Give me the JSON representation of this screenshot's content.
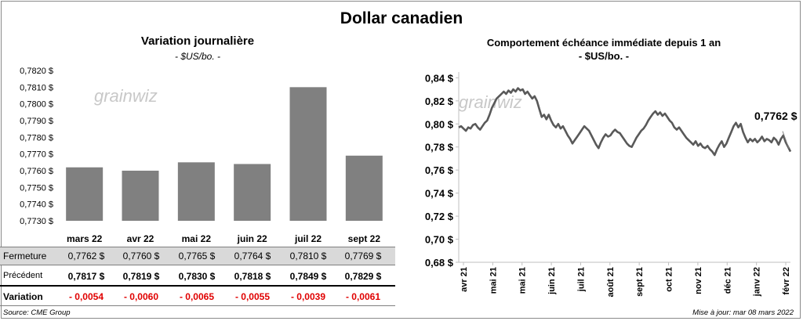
{
  "title": "Dollar canadien",
  "left_chart": {
    "title": "Variation  journalière",
    "subtitle": "- $US/bo. -",
    "watermark": "grainwiz"
  },
  "right_chart": {
    "title": "Comportement échéance immédiate depuis 1 an",
    "subtitle": "- $US/bo. -",
    "watermark": "grainwiz",
    "last_value_label": "0,7762 $"
  },
  "table": {
    "rows": [
      {
        "label": "Fermeture",
        "values": [
          "0,7762 $",
          "0,7760 $",
          "0,7765 $",
          "0,7764 $",
          "0,7810 $",
          "0,7769 $"
        ]
      },
      {
        "label": "Précédent",
        "values": [
          "0,7817 $",
          "0,7819 $",
          "0,7830 $",
          "0,7818 $",
          "0,7849 $",
          "0,7829 $"
        ]
      },
      {
        "label": "Variation",
        "values": [
          "- 0,0054",
          "- 0,0060",
          "- 0,0065",
          "- 0,0055",
          "- 0,0039",
          "- 0,0061"
        ]
      }
    ],
    "negative_color": "#e00000",
    "shade_color": "#d9d9d9"
  },
  "footer": {
    "source": "Source: CME Group",
    "update": "Mise à jour: mar 08 mars 2022"
  },
  "chart_data": [
    {
      "type": "bar",
      "categories": [
        "mars 22",
        "avr 22",
        "mai 22",
        "juin 22",
        "juil 22",
        "sept 22"
      ],
      "values": [
        0.7762,
        0.776,
        0.7765,
        0.7764,
        0.781,
        0.7769
      ],
      "ylim": [
        0.773,
        0.782
      ],
      "yticks": [
        "0,7730 $",
        "0,7740 $",
        "0,7750 $",
        "0,7760 $",
        "0,7770 $",
        "0,7780 $",
        "0,7790 $",
        "0,7800 $",
        "0,7810 $",
        "0,7820 $"
      ],
      "bar_color": "#808080"
    },
    {
      "type": "line",
      "xticks": [
        "avr 21",
        "mai 21",
        "mai 21",
        "juin 21",
        "juil 21",
        "août 21",
        "sept 21",
        "oct 21",
        "nov 21",
        "déc 21",
        "janv 22",
        "févr 22"
      ],
      "yticks": [
        "0,68 $",
        "0,70 $",
        "0,72 $",
        "0,74 $",
        "0,76 $",
        "0,78 $",
        "0,80 $",
        "0,82 $",
        "0,84 $"
      ],
      "ylim": [
        0.68,
        0.845
      ],
      "grid": false,
      "line_color": "#595959",
      "y": [
        0.797,
        0.798,
        0.796,
        0.794,
        0.797,
        0.796,
        0.799,
        0.8,
        0.797,
        0.795,
        0.798,
        0.801,
        0.803,
        0.808,
        0.814,
        0.818,
        0.822,
        0.824,
        0.826,
        0.828,
        0.826,
        0.829,
        0.827,
        0.83,
        0.828,
        0.831,
        0.829,
        0.83,
        0.826,
        0.828,
        0.825,
        0.822,
        0.824,
        0.82,
        0.813,
        0.806,
        0.808,
        0.804,
        0.808,
        0.803,
        0.799,
        0.797,
        0.8,
        0.796,
        0.798,
        0.794,
        0.79,
        0.787,
        0.783,
        0.786,
        0.789,
        0.792,
        0.795,
        0.798,
        0.796,
        0.794,
        0.79,
        0.786,
        0.782,
        0.779,
        0.784,
        0.788,
        0.791,
        0.789,
        0.79,
        0.793,
        0.795,
        0.793,
        0.792,
        0.789,
        0.786,
        0.783,
        0.781,
        0.78,
        0.784,
        0.788,
        0.791,
        0.794,
        0.796,
        0.799,
        0.803,
        0.806,
        0.809,
        0.811,
        0.808,
        0.81,
        0.807,
        0.809,
        0.806,
        0.803,
        0.801,
        0.797,
        0.795,
        0.797,
        0.794,
        0.791,
        0.788,
        0.786,
        0.784,
        0.782,
        0.785,
        0.781,
        0.783,
        0.78,
        0.779,
        0.781,
        0.778,
        0.776,
        0.773,
        0.778,
        0.782,
        0.785,
        0.78,
        0.783,
        0.788,
        0.793,
        0.798,
        0.801,
        0.797,
        0.8,
        0.793,
        0.788,
        0.784,
        0.787,
        0.785,
        0.787,
        0.784,
        0.786,
        0.789,
        0.785,
        0.787,
        0.786,
        0.784,
        0.788,
        0.786,
        0.782,
        0.787,
        0.79,
        0.784,
        0.78,
        0.776
      ]
    }
  ]
}
